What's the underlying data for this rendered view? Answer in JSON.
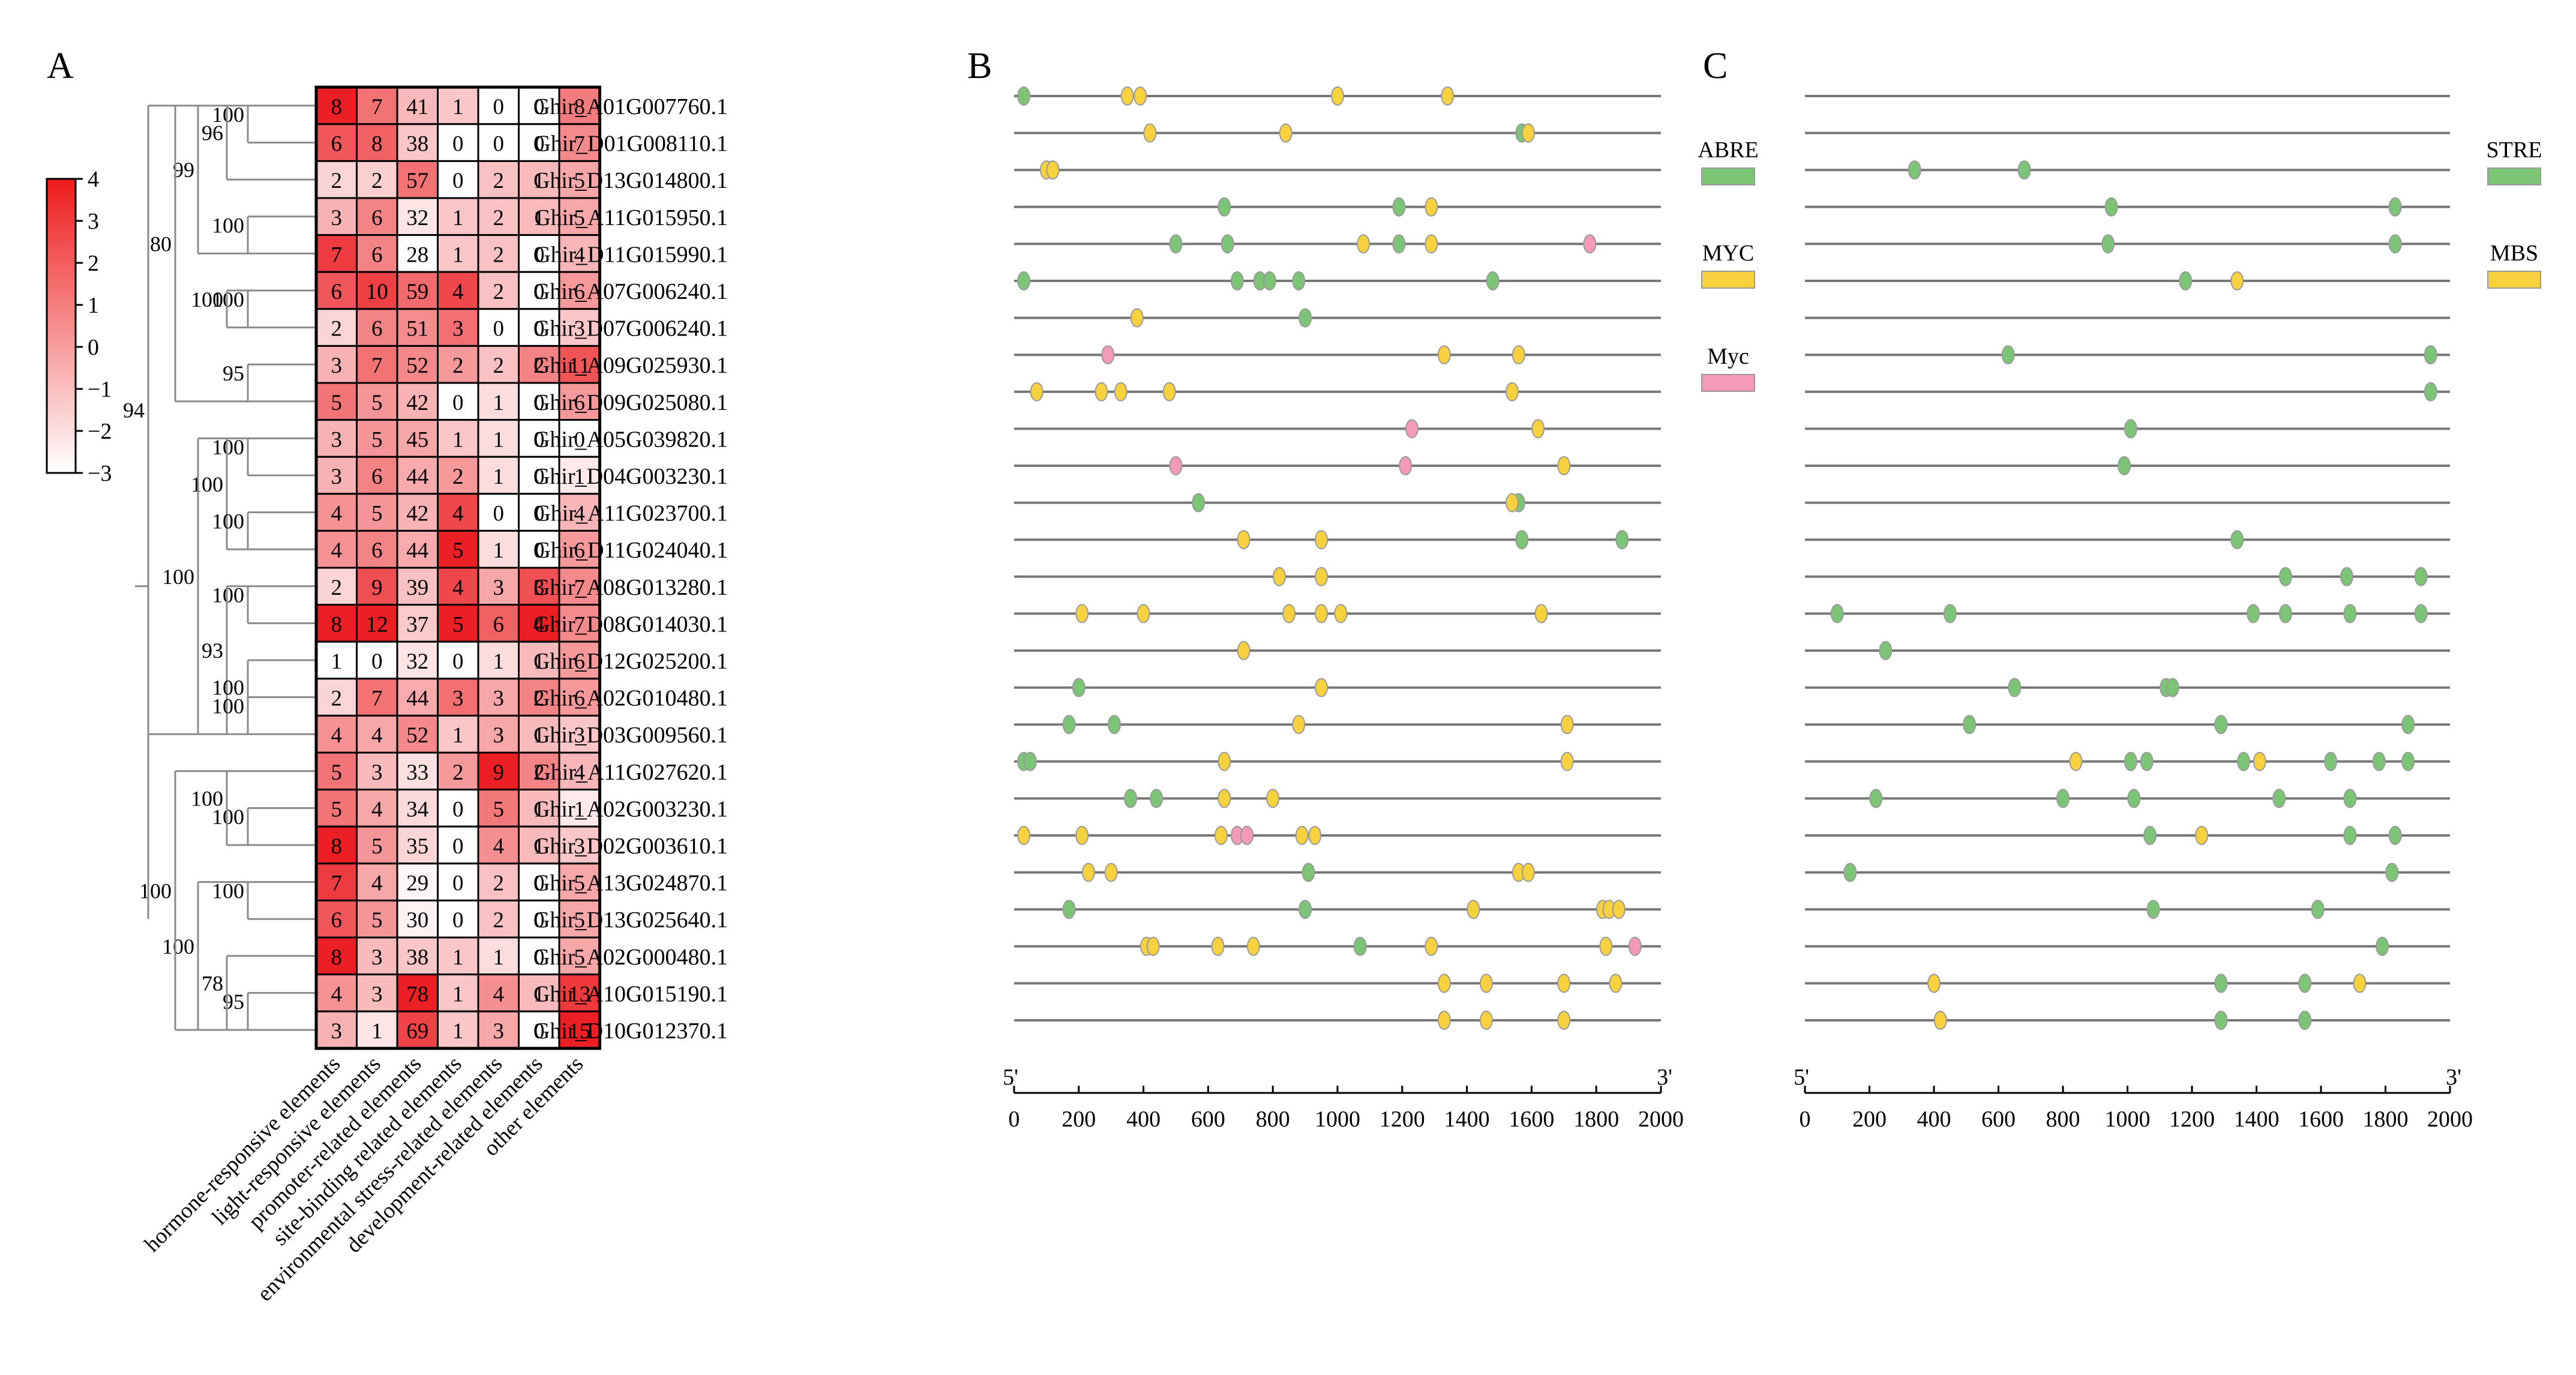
{
  "panels": {
    "a": "A",
    "b": "B",
    "c": "C"
  },
  "colorbar": {
    "ticks": [
      "4",
      "3",
      "2",
      "1",
      "0",
      "−1",
      "−2",
      "−3"
    ],
    "low_color": "#ffffff",
    "high_color": "#ee1c1c"
  },
  "axis_end_labels": {
    "start": "5'",
    "end": "3'"
  },
  "chart_data": [
    {
      "type": "heatmap",
      "panel": "A",
      "genes": [
        "Ghir_A01G007760.1",
        "Ghir_D01G008110.1",
        "Ghir_D13G014800.1",
        "Ghir_A11G015950.1",
        "Ghir_D11G015990.1",
        "Ghir_A07G006240.1",
        "Ghir_D07G006240.1",
        "Ghir_A09G025930.1",
        "Ghir_D09G025080.1",
        "Ghir_A05G039820.1",
        "Ghir_D04G003230.1",
        "Ghir_A11G023700.1",
        "Ghir_D11G024040.1",
        "Ghir_A08G013280.1",
        "Ghir_D08G014030.1",
        "Ghir_D12G025200.1",
        "Ghir_A02G010480.1",
        "Ghir_D03G009560.1",
        "Ghir_A11G027620.1",
        "Ghir_A02G003230.1",
        "Ghir_D02G003610.1",
        "Ghir_A13G024870.1",
        "Ghir_D13G025640.1",
        "Ghir_A02G000480.1",
        "Ghir_A10G015190.1",
        "Ghir_D10G012370.1"
      ],
      "categories": [
        "hormone-responsive elements",
        "light-responsive elements",
        "promoter-related elements",
        "site-binding related elements",
        "environmental stress-related elements",
        "development-related elements",
        "other elements"
      ],
      "values": [
        [
          8,
          7,
          41,
          1,
          0,
          0,
          8
        ],
        [
          6,
          8,
          38,
          0,
          0,
          0,
          7
        ],
        [
          2,
          2,
          57,
          0,
          2,
          1,
          5
        ],
        [
          3,
          6,
          32,
          1,
          2,
          1,
          5
        ],
        [
          7,
          6,
          28,
          1,
          2,
          0,
          4
        ],
        [
          6,
          10,
          59,
          4,
          2,
          0,
          6
        ],
        [
          2,
          6,
          51,
          3,
          0,
          0,
          3
        ],
        [
          3,
          7,
          52,
          2,
          2,
          2,
          11
        ],
        [
          5,
          5,
          42,
          0,
          1,
          0,
          6
        ],
        [
          3,
          5,
          45,
          1,
          1,
          0,
          0
        ],
        [
          3,
          6,
          44,
          2,
          1,
          0,
          1
        ],
        [
          4,
          5,
          42,
          4,
          0,
          0,
          4
        ],
        [
          4,
          6,
          44,
          5,
          1,
          0,
          6
        ],
        [
          2,
          9,
          39,
          4,
          3,
          3,
          7
        ],
        [
          8,
          12,
          37,
          5,
          6,
          4,
          7
        ],
        [
          1,
          0,
          32,
          0,
          1,
          1,
          6
        ],
        [
          2,
          7,
          44,
          3,
          3,
          2,
          6
        ],
        [
          4,
          4,
          52,
          1,
          3,
          1,
          3
        ],
        [
          5,
          3,
          33,
          2,
          9,
          2,
          4
        ],
        [
          5,
          4,
          34,
          0,
          5,
          1,
          1
        ],
        [
          8,
          5,
          35,
          0,
          4,
          1,
          3
        ],
        [
          7,
          4,
          29,
          0,
          2,
          0,
          5
        ],
        [
          6,
          5,
          30,
          0,
          2,
          0,
          5
        ],
        [
          8,
          3,
          38,
          1,
          1,
          0,
          5
        ],
        [
          4,
          3,
          78,
          1,
          4,
          1,
          13
        ],
        [
          3,
          1,
          69,
          1,
          3,
          0,
          15
        ]
      ],
      "scale_range": [
        -3,
        4
      ],
      "bootstrap": [
        {
          "value": "100",
          "tier": 0,
          "rows": [
            0,
            1
          ]
        },
        {
          "value": "96",
          "tier": 1,
          "rows": [
            0,
            2
          ]
        },
        {
          "value": "100",
          "tier": 0,
          "rows": [
            3,
            4
          ]
        },
        {
          "value": "99",
          "tier": 2,
          "rows": [
            0,
            4
          ]
        },
        {
          "value": "100",
          "tier": 0,
          "rows": [
            5,
            6
          ]
        },
        {
          "value": "100",
          "tier": 1,
          "rows": [
            5,
            6
          ]
        },
        {
          "value": "95",
          "tier": 0,
          "rows": [
            7,
            8
          ]
        },
        {
          "value": "80",
          "tier": 3,
          "rows": [
            0,
            8
          ]
        },
        {
          "value": "100",
          "tier": 0,
          "rows": [
            9,
            10
          ]
        },
        {
          "value": "100",
          "tier": 1,
          "rows": [
            9,
            12
          ]
        },
        {
          "value": "100",
          "tier": 0,
          "rows": [
            11,
            12
          ]
        },
        {
          "value": "100",
          "tier": 0,
          "rows": [
            13,
            14
          ]
        },
        {
          "value": "93",
          "tier": 1,
          "rows": [
            13,
            17
          ]
        },
        {
          "value": "100",
          "tier": 0,
          "rows": [
            15,
            17
          ]
        },
        {
          "value": "100",
          "tier": 0,
          "rows": [
            16,
            17
          ]
        },
        {
          "value": "100",
          "tier": 2,
          "rows": [
            9,
            17
          ]
        },
        {
          "value": "94",
          "tier": 4,
          "rows": [
            0,
            17
          ]
        },
        {
          "value": "100",
          "tier": 0,
          "rows": [
            19,
            20
          ]
        },
        {
          "value": "100",
          "tier": 1,
          "rows": [
            18,
            20
          ]
        },
        {
          "value": "100",
          "tier": 0,
          "rows": [
            21,
            22
          ]
        },
        {
          "value": "95",
          "tier": 0,
          "rows": [
            24,
            25
          ]
        },
        {
          "value": "78",
          "tier": 1,
          "rows": [
            23,
            25
          ]
        },
        {
          "value": "100",
          "tier": 2,
          "rows": [
            21,
            25
          ]
        },
        {
          "value": "100",
          "tier": 3,
          "rows": [
            18,
            25
          ]
        }
      ]
    },
    {
      "type": "scatter",
      "panel": "B",
      "xlim": [
        0,
        2000
      ],
      "x_ticks": [
        "0",
        "200",
        "400",
        "600",
        "800",
        "1000",
        "1200",
        "1400",
        "1600",
        "1800",
        "2000"
      ],
      "legend": [
        {
          "name": "ABRE",
          "color": "#7cc576"
        },
        {
          "name": "MYC",
          "color": "#f7d23e"
        },
        {
          "name": "Myc",
          "color": "#f49ab6"
        }
      ],
      "series": [
        {
          "name": "ABRE",
          "rows": [
            [
              30
            ],
            [
              1570
            ],
            [],
            [
              650,
              1190
            ],
            [
              500,
              660,
              1190
            ],
            [
              30,
              690,
              760,
              790,
              880,
              1480
            ],
            [
              900
            ],
            [],
            [],
            [],
            [],
            [
              570,
              1560
            ],
            [
              1570,
              1880
            ],
            [],
            [],
            [],
            [
              200
            ],
            [
              170,
              310
            ],
            [
              30,
              50
            ],
            [
              360,
              440
            ],
            [
              720
            ],
            [
              910
            ],
            [
              170,
              900
            ],
            [
              1070
            ],
            [],
            []
          ]
        },
        {
          "name": "MYC",
          "rows": [
            [
              350,
              390,
              1000,
              1340
            ],
            [
              420,
              840,
              1590
            ],
            [
              100,
              120
            ],
            [
              1290
            ],
            [
              1080,
              1290
            ],
            [],
            [
              380
            ],
            [
              1330,
              1560
            ],
            [
              70,
              270,
              330,
              480,
              1540
            ],
            [
              1620
            ],
            [
              1700
            ],
            [
              1540
            ],
            [
              710,
              950
            ],
            [
              820,
              950
            ],
            [
              210,
              400,
              850,
              950,
              1010,
              1630
            ],
            [
              710
            ],
            [
              950
            ],
            [
              880,
              1710
            ],
            [
              650,
              1710
            ],
            [
              650,
              800
            ],
            [
              30,
              210,
              640,
              890,
              930
            ],
            [
              230,
              300,
              1560,
              1590
            ],
            [
              1420,
              1820,
              1840,
              1870
            ],
            [
              410,
              430,
              630,
              740,
              1290,
              1830
            ],
            [
              1330,
              1460,
              1700,
              1860
            ],
            [
              1330,
              1460,
              1700
            ]
          ]
        },
        {
          "name": "Myc",
          "rows": [
            [],
            [],
            [],
            [],
            [
              1780
            ],
            [],
            [],
            [
              290
            ],
            [],
            [
              1230
            ],
            [
              500,
              1210
            ],
            [],
            [],
            [],
            [],
            [],
            [],
            [],
            [],
            [],
            [
              690,
              720
            ],
            [],
            [],
            [
              1920
            ],
            [],
            []
          ]
        }
      ]
    },
    {
      "type": "scatter",
      "panel": "C",
      "xlim": [
        0,
        2000
      ],
      "x_ticks": [
        "0",
        "200",
        "400",
        "600",
        "800",
        "1000",
        "1200",
        "1400",
        "1600",
        "1800",
        "2000"
      ],
      "legend": [
        {
          "name": "STRE",
          "color": "#7cc576"
        },
        {
          "name": "MBS",
          "color": "#f7d23e"
        }
      ],
      "series": [
        {
          "name": "STRE",
          "rows": [
            [],
            [],
            [
              340,
              680
            ],
            [
              950,
              1830
            ],
            [
              940,
              1830
            ],
            [
              1180
            ],
            [],
            [
              630,
              1940
            ],
            [
              1940
            ],
            [
              1010
            ],
            [
              990
            ],
            [],
            [
              1340
            ],
            [
              1490,
              1680,
              1910
            ],
            [
              100,
              450,
              1390,
              1490,
              1690,
              1910
            ],
            [
              250
            ],
            [
              650,
              1120,
              1140
            ],
            [
              510,
              1290,
              1870
            ],
            [
              1010,
              1060,
              1360,
              1630,
              1780,
              1870
            ],
            [
              220,
              800,
              1020,
              1470,
              1690
            ],
            [
              1070,
              1690,
              1830
            ],
            [
              140,
              1820
            ],
            [
              1080,
              1590
            ],
            [
              1790
            ],
            [
              1290,
              1550
            ],
            [
              1290,
              1550
            ]
          ]
        },
        {
          "name": "MBS",
          "rows": [
            [],
            [],
            [],
            [],
            [],
            [
              1340
            ],
            [],
            [],
            [],
            [],
            [],
            [],
            [],
            [],
            [],
            [],
            [],
            [],
            [
              840,
              1410
            ],
            [],
            [
              1230
            ],
            [],
            [],
            [],
            [
              400,
              1720
            ],
            [
              420
            ]
          ]
        }
      ]
    }
  ]
}
